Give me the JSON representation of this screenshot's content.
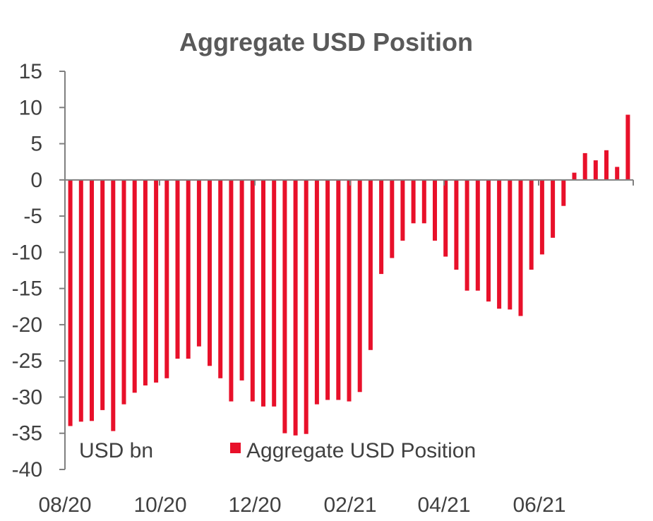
{
  "chart_data": {
    "type": "bar",
    "title": "Aggregate USD Position",
    "unit_label": "USD bn",
    "ylim": [
      -40,
      15
    ],
    "yticks": [
      15,
      10,
      5,
      0,
      -5,
      -10,
      -15,
      -20,
      -25,
      -30,
      -35,
      -40
    ],
    "xticks": [
      "08/20",
      "10/20",
      "12/20",
      "02/21",
      "04/21",
      "06/21"
    ],
    "legend": {
      "position": "bottom-center",
      "entries": [
        "Aggregate USD Position"
      ]
    },
    "grid": false,
    "colors": {
      "bar": "#e8102a",
      "axis": "#7f7f7f",
      "text": "#404040",
      "title": "#595959"
    },
    "series": [
      {
        "name": "Aggregate USD Position",
        "values": [
          -34.0,
          -33.4,
          -33.3,
          -31.8,
          -34.7,
          -31.0,
          -29.4,
          -28.4,
          -28.0,
          -27.4,
          -24.7,
          -24.7,
          -23.0,
          -25.7,
          -27.4,
          -30.6,
          -27.7,
          -30.6,
          -31.3,
          -31.3,
          -35.0,
          -35.3,
          -35.1,
          -31.0,
          -30.4,
          -30.4,
          -30.6,
          -29.3,
          -23.5,
          -13.0,
          -10.8,
          -8.4,
          -6.0,
          -6.0,
          -8.4,
          -10.6,
          -12.4,
          -15.3,
          -15.3,
          -16.8,
          -17.8,
          -17.9,
          -18.8,
          -12.4,
          -10.3,
          -8.0,
          -3.6,
          1.0,
          3.7,
          2.7,
          4.1,
          1.8,
          9.0
        ]
      }
    ]
  }
}
